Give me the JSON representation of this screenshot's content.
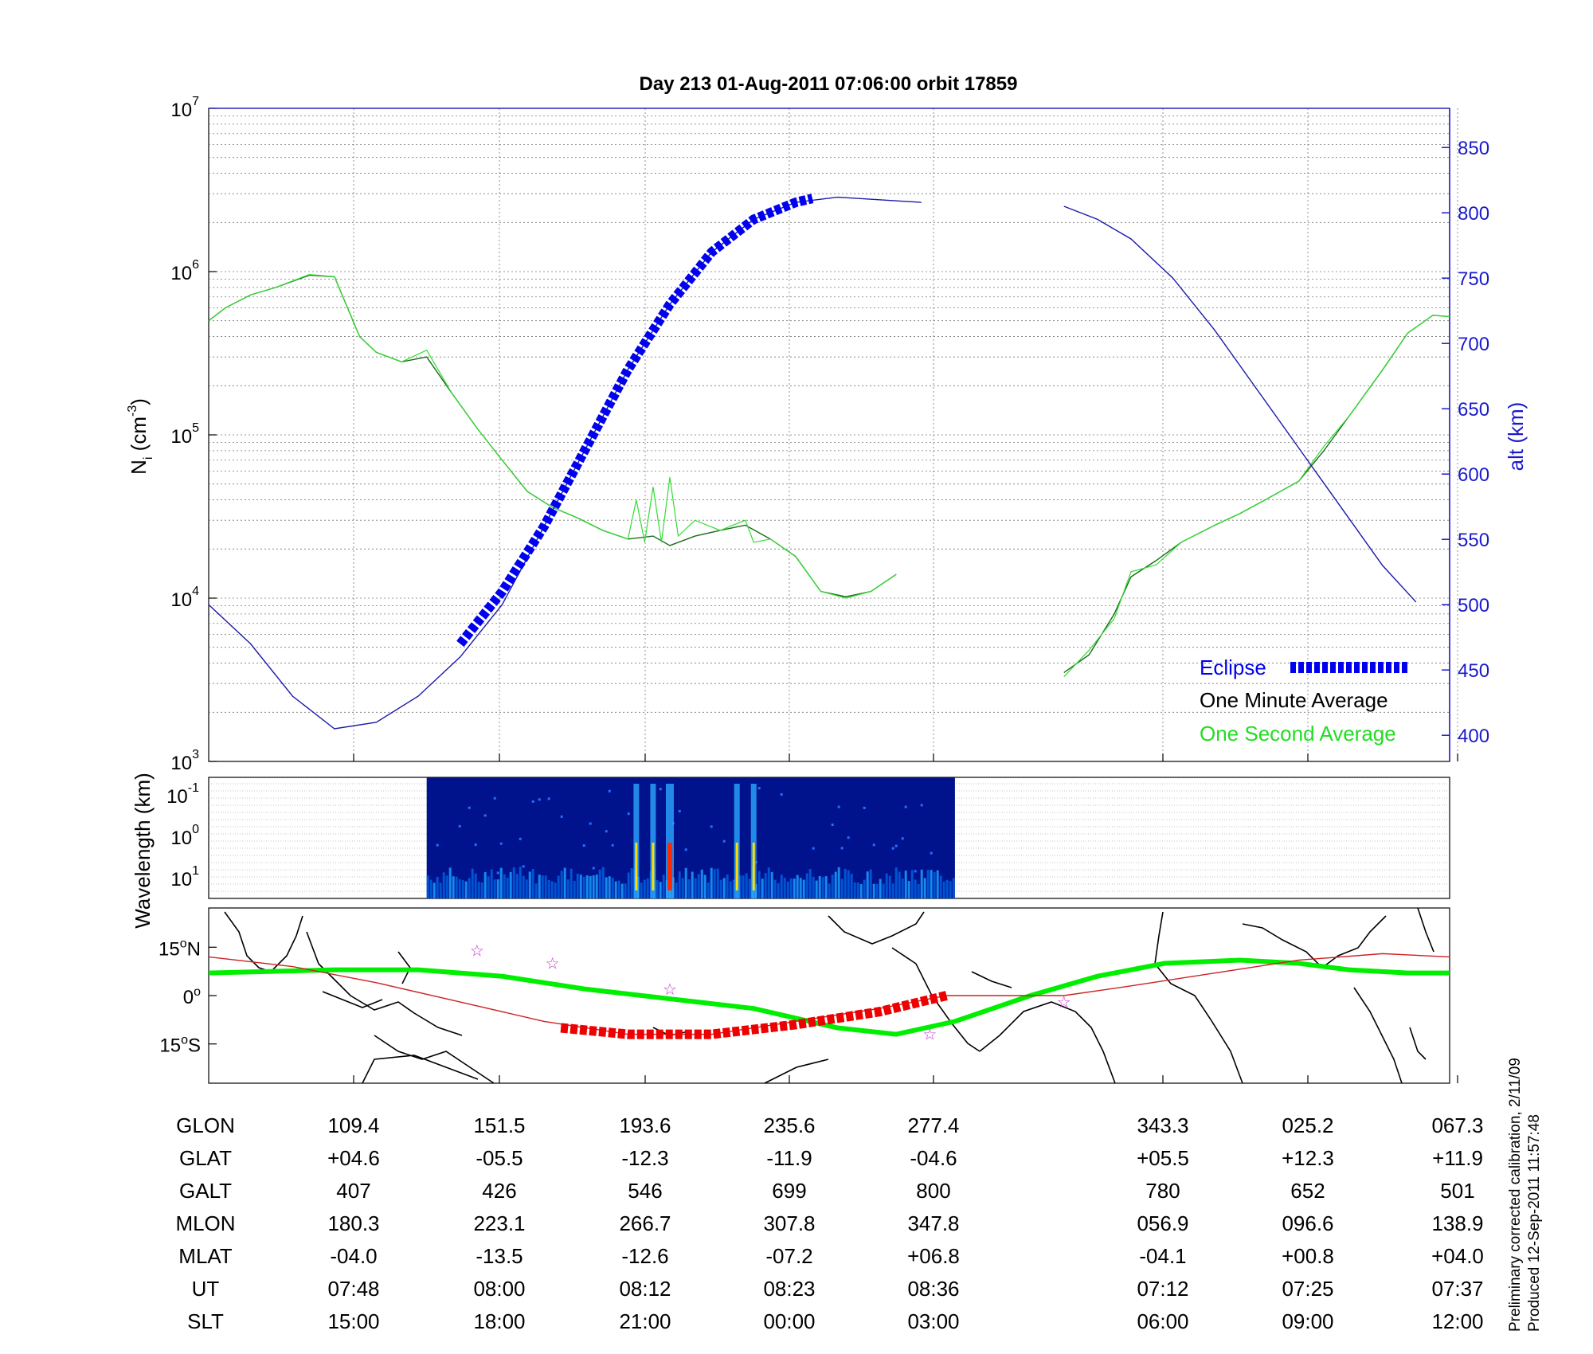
{
  "chart_data": [
    {
      "type": "line",
      "panel": "density",
      "title": "Day 213  01-Aug-2011 07:06:00   orbit 17859",
      "ylabel": "N",
      "ylabel_sub": "i",
      "ylabel_unit": "(cm",
      "ylabel_unit_sup": "-3",
      "ylabel_unit_end": ")",
      "y_scale": "log",
      "ylim": [
        1000,
        10000000
      ],
      "y_ticks": [
        {
          "base": "10",
          "exp": "3",
          "v": 1000
        },
        {
          "base": "10",
          "exp": "4",
          "v": 10000
        },
        {
          "base": "10",
          "exp": "5",
          "v": 100000
        },
        {
          "base": "10",
          "exp": "6",
          "v": 1000000
        },
        {
          "base": "10",
          "exp": "7",
          "v": 10000000
        }
      ],
      "y2label": "alt (km)",
      "y2lim": [
        380,
        880
      ],
      "y2_ticks": [
        "400",
        "450",
        "500",
        "550",
        "600",
        "650",
        "700",
        "750",
        "800",
        "850"
      ],
      "x_ticks": [
        "07:48",
        "08:00",
        "08:12",
        "08:23",
        "08:36",
        "07:12",
        "07:25",
        "07:37"
      ],
      "grid": true,
      "legend_position": "bottom-right",
      "legend": [
        {
          "label": "Eclipse",
          "color": "#0000ee"
        },
        {
          "label": "One Minute Average",
          "color": "#000000"
        },
        {
          "label": "One Second Average",
          "color": "#00dd00"
        }
      ],
      "series": [
        {
          "name": "One Minute Average",
          "color": "#1c6b1c",
          "segments": [
            [
              [
                0,
                500000
              ],
              [
                0.2,
                600000
              ],
              [
                0.5,
                720000
              ],
              [
                0.8,
                800000
              ],
              [
                1.2,
                950000
              ],
              [
                1.5,
                930000
              ],
              [
                1.8,
                400000
              ],
              [
                2.0,
                320000
              ],
              [
                2.3,
                280000
              ],
              [
                2.6,
                300000
              ],
              [
                2.9,
                180000
              ],
              [
                3.2,
                110000
              ],
              [
                3.5,
                70000
              ],
              [
                3.8,
                45000
              ],
              [
                4.1,
                36000
              ],
              [
                4.4,
                31000
              ],
              [
                4.7,
                26000
              ],
              [
                5.0,
                23000
              ],
              [
                5.3,
                24000
              ],
              [
                5.5,
                21000
              ],
              [
                5.8,
                24000
              ],
              [
                6.1,
                26000
              ],
              [
                6.4,
                28000
              ],
              [
                6.7,
                23000
              ],
              [
                7.0,
                18000
              ],
              [
                7.3,
                11000
              ],
              [
                7.6,
                10200
              ],
              [
                7.9,
                11000
              ],
              [
                8.2,
                14000
              ]
            ],
            [
              [
                10.2,
                3500
              ],
              [
                10.5,
                4500
              ],
              [
                10.8,
                8000
              ],
              [
                11.0,
                13500
              ],
              [
                11.3,
                17000
              ],
              [
                11.6,
                22000
              ],
              [
                12.0,
                28000
              ],
              [
                12.3,
                33000
              ],
              [
                12.6,
                40000
              ],
              [
                13.0,
                52000
              ],
              [
                13.3,
                80000
              ],
              [
                13.6,
                130000
              ],
              [
                14.0,
                250000
              ],
              [
                14.3,
                420000
              ],
              [
                14.6,
                540000
              ],
              [
                14.8,
                530000
              ]
            ]
          ]
        },
        {
          "name": "One Second Average",
          "color": "#33dd33",
          "segments": [
            [
              [
                0,
                500000
              ],
              [
                0.2,
                600000
              ],
              [
                0.5,
                720000
              ],
              [
                0.8,
                800000
              ],
              [
                1.2,
                960000
              ],
              [
                1.5,
                930000
              ],
              [
                1.8,
                400000
              ],
              [
                2.0,
                320000
              ],
              [
                2.3,
                280000
              ],
              [
                2.6,
                330000
              ],
              [
                2.9,
                180000
              ],
              [
                3.2,
                110000
              ],
              [
                3.5,
                70000
              ],
              [
                3.8,
                45000
              ],
              [
                4.1,
                36000
              ],
              [
                4.4,
                31000
              ],
              [
                4.7,
                26000
              ],
              [
                5.0,
                23000
              ],
              [
                5.1,
                40000
              ],
              [
                5.2,
                22000
              ],
              [
                5.3,
                48000
              ],
              [
                5.4,
                22000
              ],
              [
                5.5,
                55000
              ],
              [
                5.6,
                24000
              ],
              [
                5.8,
                30000
              ],
              [
                6.1,
                26000
              ],
              [
                6.4,
                30000
              ],
              [
                6.5,
                22000
              ],
              [
                6.7,
                23000
              ],
              [
                7.0,
                18000
              ],
              [
                7.3,
                11000
              ],
              [
                7.6,
                10000
              ],
              [
                7.9,
                11000
              ],
              [
                8.2,
                14000
              ]
            ],
            [
              [
                10.2,
                3300
              ],
              [
                10.5,
                4800
              ],
              [
                10.8,
                7500
              ],
              [
                11.0,
                14500
              ],
              [
                11.3,
                16000
              ],
              [
                11.6,
                22000
              ],
              [
                12.0,
                28000
              ],
              [
                12.3,
                33000
              ],
              [
                12.6,
                40000
              ],
              [
                13.0,
                52000
              ],
              [
                13.3,
                85000
              ],
              [
                13.6,
                130000
              ],
              [
                14.0,
                250000
              ],
              [
                14.3,
                420000
              ],
              [
                14.6,
                540000
              ],
              [
                14.8,
                530000
              ]
            ]
          ]
        },
        {
          "name": "alt (km)",
          "axis": "right",
          "color": "#1a1aaa",
          "segments": [
            [
              [
                0,
                500
              ],
              [
                0.5,
                470
              ],
              [
                1.0,
                430
              ],
              [
                1.5,
                405
              ],
              [
                2.0,
                410
              ],
              [
                2.5,
                430
              ],
              [
                3.0,
                460
              ],
              [
                3.5,
                500
              ],
              [
                4.0,
                560
              ],
              [
                4.5,
                620
              ],
              [
                5.0,
                680
              ],
              [
                5.5,
                730
              ],
              [
                6.0,
                770
              ],
              [
                6.5,
                795
              ],
              [
                7.0,
                808
              ],
              [
                7.5,
                812
              ],
              [
                8.0,
                810
              ],
              [
                8.5,
                808
              ]
            ],
            [
              [
                10.2,
                805
              ],
              [
                10.6,
                795
              ],
              [
                11.0,
                780
              ],
              [
                11.5,
                750
              ],
              [
                12.0,
                710
              ],
              [
                12.5,
                665
              ],
              [
                13.0,
                620
              ],
              [
                13.5,
                575
              ],
              [
                14.0,
                530
              ],
              [
                14.4,
                502
              ]
            ]
          ]
        },
        {
          "name": "Eclipse",
          "axis": "right",
          "color": "#0000ee",
          "segments": [
            [
              [
                3.0,
                470
              ],
              [
                3.5,
                510
              ],
              [
                4.0,
                560
              ],
              [
                4.5,
                620
              ],
              [
                5.0,
                680
              ],
              [
                5.5,
                730
              ],
              [
                6.0,
                770
              ],
              [
                6.5,
                795
              ],
              [
                7.0,
                808
              ],
              [
                7.2,
                811
              ]
            ]
          ]
        }
      ]
    },
    {
      "type": "heatmap",
      "panel": "wavelength",
      "ylabel": "Wavelength (km)",
      "y_scale": "log",
      "y_ticks": [
        {
          "base": "10",
          "exp": "-1"
        },
        {
          "base": "10",
          "exp": "0"
        },
        {
          "base": "10",
          "exp": "1"
        }
      ],
      "x_range": [
        2.6,
        8.9
      ],
      "colormap": "jet",
      "bright_bursts_x": [
        5.1,
        5.3,
        5.5,
        6.3,
        6.5
      ]
    },
    {
      "type": "line",
      "panel": "map",
      "y_ticks": [
        {
          "value": "15",
          "unit": "o",
          "hemi": "N"
        },
        {
          "value": "0",
          "unit": "o",
          "hemi": ""
        },
        {
          "value": "15",
          "unit": "o",
          "hemi": "S"
        }
      ],
      "ylim": [
        -25,
        25
      ],
      "series": [
        {
          "name": "Magnetic equator",
          "color": "#00ee00",
          "points": [
            [
              0,
              7
            ],
            [
              1.5,
              8
            ],
            [
              2.5,
              8
            ],
            [
              3.5,
              6
            ],
            [
              4.5,
              2
            ],
            [
              5.5,
              -1
            ],
            [
              6.5,
              -4
            ],
            [
              7.5,
              -10
            ],
            [
              8.2,
              -12
            ],
            [
              8.9,
              -8
            ],
            [
              9.8,
              0
            ],
            [
              10.6,
              6
            ],
            [
              11.4,
              10
            ],
            [
              12.3,
              11
            ],
            [
              13.0,
              10
            ],
            [
              13.6,
              8
            ],
            [
              14.3,
              7
            ],
            [
              14.8,
              7
            ]
          ]
        },
        {
          "name": "Orbit ground track",
          "color": "#cc2222",
          "points": [
            [
              0,
              12
            ],
            [
              1,
              9
            ],
            [
              2,
              4
            ],
            [
              3,
              -2
            ],
            [
              4,
              -8
            ],
            [
              5,
              -12
            ],
            [
              6,
              -12
            ],
            [
              7,
              -8
            ],
            [
              8,
              -4
            ],
            [
              8.8,
              0
            ],
            [
              10.2,
              0
            ],
            [
              11,
              3
            ],
            [
              12,
              7
            ],
            [
              13,
              11
            ],
            [
              14,
              13
            ],
            [
              14.8,
              12
            ]
          ]
        },
        {
          "name": "Eclipse track",
          "color": "#ee0000",
          "points": [
            [
              4.2,
              -10
            ],
            [
              5.0,
              -12
            ],
            [
              6.0,
              -12
            ],
            [
              7.0,
              -9
            ],
            [
              8.0,
              -5
            ],
            [
              8.8,
              0
            ]
          ]
        }
      ],
      "stars": [
        [
          3.2,
          14
        ],
        [
          4.1,
          10
        ],
        [
          5.5,
          2
        ],
        [
          8.6,
          -12
        ],
        [
          10.2,
          -2
        ]
      ]
    }
  ],
  "table": {
    "row_labels": [
      "GLON",
      "GLAT",
      "GALT",
      "MLON",
      "MLAT",
      "UT",
      "SLT"
    ],
    "columns": [
      [
        "109.4",
        "+04.6",
        "407",
        "180.3",
        "-04.0",
        "07:48",
        "15:00"
      ],
      [
        "151.5",
        "-05.5",
        "426",
        "223.1",
        "-13.5",
        "08:00",
        "18:00"
      ],
      [
        "193.6",
        "-12.3",
        "546",
        "266.7",
        "-12.6",
        "08:12",
        "21:00"
      ],
      [
        "235.6",
        "-11.9",
        "699",
        "307.8",
        "-07.2",
        "08:23",
        "00:00"
      ],
      [
        "277.4",
        "-04.6",
        "800",
        "347.8",
        "+06.8",
        "08:36",
        "03:00"
      ],
      [
        "343.3",
        "+05.5",
        "780",
        "056.9",
        "-04.1",
        "07:12",
        "06:00"
      ],
      [
        "025.2",
        "+12.3",
        "652",
        "096.6",
        "+00.8",
        "07:25",
        "09:00"
      ],
      [
        "067.3",
        "+11.9",
        "501",
        "138.9",
        "+04.0",
        "07:37",
        "12:00"
      ]
    ]
  },
  "footnote": {
    "line1": "Preliminary corrected calibration, 2/11/09",
    "line2": "Produced 12-Sep-2011 11:57:48"
  }
}
